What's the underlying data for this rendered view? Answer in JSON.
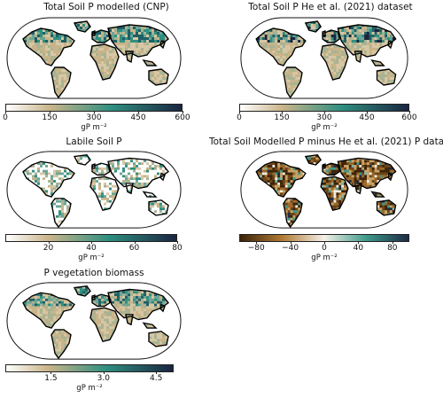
{
  "panels": [
    {
      "title": "Total Soil P modelled (CNP)",
      "unit": "gP m⁻²",
      "ticks": [
        "0",
        "150",
        "300",
        "450",
        "600"
      ],
      "range": [
        0,
        600
      ],
      "colormap": "sequential"
    },
    {
      "title": "Total Soil P He et al. (2021) dataset",
      "unit": "gP m⁻²",
      "ticks": [
        "0",
        "150",
        "300",
        "450",
        "600"
      ],
      "range": [
        0,
        600
      ],
      "colormap": "sequential"
    },
    {
      "title": "Labile Soil P",
      "unit": "gP m⁻²",
      "ticks": [
        "20",
        "40",
        "60",
        "80"
      ],
      "range": [
        0,
        80
      ],
      "colormap": "sequential"
    },
    {
      "title": "Total Soil Modelled P minus He et al. (2021) P dataset",
      "unit": "gP m⁻²",
      "ticks": [
        "−80",
        "−40",
        "0",
        "40",
        "80"
      ],
      "range": [
        -100,
        100
      ],
      "colormap": "diverging"
    },
    {
      "title": "P vegetation biomass",
      "unit": "gP m⁻²",
      "ticks": [
        "1.5",
        "3.0",
        "4.5"
      ],
      "range": [
        0.2,
        5.0
      ],
      "colormap": "sequential"
    }
  ],
  "colors": {
    "seq_low": "#ffffff",
    "seq_mid1": "#c9b48a",
    "seq_mid2": "#2f8f80",
    "seq_high": "#1a2540",
    "div_low": "#4a2a0a",
    "div_mid": "#f5f1e8",
    "div_high": "#1c3a4a"
  }
}
